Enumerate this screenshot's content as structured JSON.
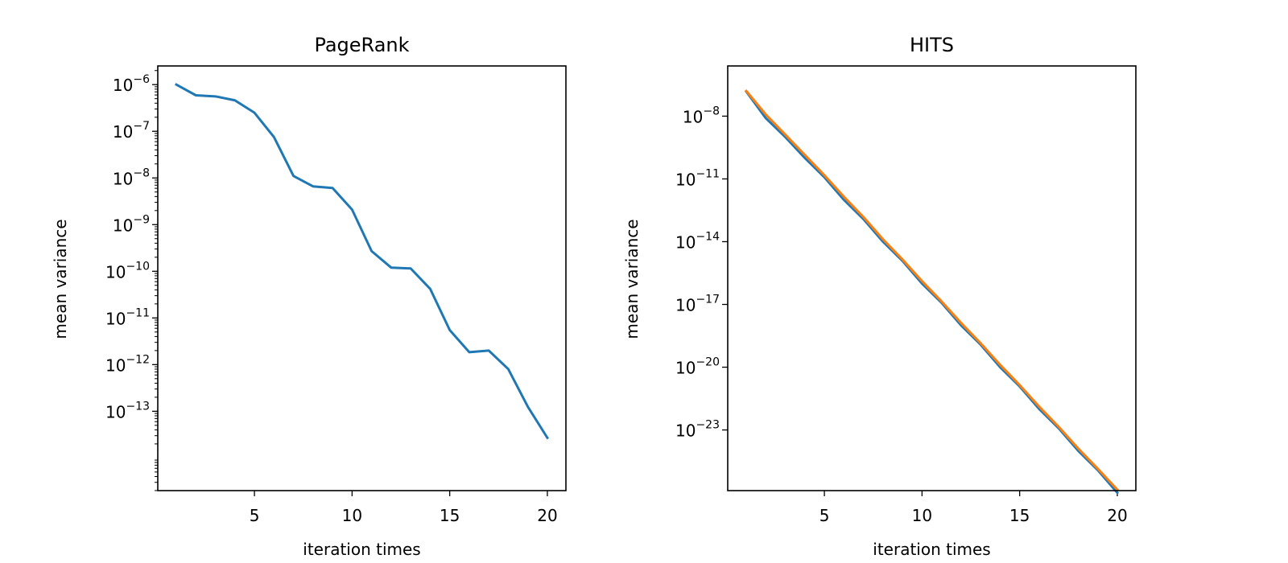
{
  "chart_data": [
    {
      "type": "line",
      "title": "PageRank",
      "xlabel": "iteration times",
      "ylabel": "mean variance",
      "yscale": "log",
      "grid": false,
      "xlim": [
        0.05,
        20.95
      ],
      "ylim_exp": [
        -14.7,
        -5.6
      ],
      "xticks": [
        5,
        10,
        15,
        20
      ],
      "ytick_exps": [
        -13,
        -12,
        -11,
        -10,
        -9,
        -8,
        -7,
        -6
      ],
      "x": [
        1,
        2,
        3,
        4,
        5,
        6,
        7,
        8,
        9,
        10,
        11,
        12,
        13,
        14,
        15,
        16,
        17,
        18,
        19,
        20
      ],
      "series": [
        {
          "color": "#1f77b4",
          "y": [
            1e-06,
            5.9e-07,
            5.6e-07,
            4.6e-07,
            2.5e-07,
            7.5e-08,
            1.1e-08,
            6.6e-09,
            6.1e-09,
            2.1e-09,
            2.7e-10,
            1.2e-10,
            1.15e-10,
            4.2e-11,
            5.5e-12,
            1.85e-12,
            2e-12,
            8e-13,
            1.25e-13,
            2.7e-14
          ]
        }
      ]
    },
    {
      "type": "line",
      "title": "HITS",
      "xlabel": "iteration times",
      "ylabel": "mean variance",
      "yscale": "log",
      "grid": false,
      "xlim": [
        0.05,
        20.95
      ],
      "ylim_exp": [
        -25.9,
        -5.6
      ],
      "xticks": [
        5,
        10,
        15,
        20
      ],
      "ytick_exps": [
        -23,
        -20,
        -17,
        -14,
        -11,
        -8
      ],
      "x": [
        1,
        2,
        3,
        4,
        5,
        6,
        7,
        8,
        9,
        10,
        11,
        12,
        13,
        14,
        15,
        16,
        17,
        18,
        19,
        20
      ],
      "series": [
        {
          "color": "#1f77b4",
          "y": [
            1.5e-07,
            8e-09,
            1e-09,
            1e-10,
            1.2e-11,
            1e-12,
            1.2e-13,
            1e-14,
            1.2e-15,
            1e-16,
            1.2e-17,
            1e-18,
            1.2e-19,
            1e-20,
            1.2e-21,
            1e-22,
            1.2e-23,
            1e-24,
            1.2e-25,
            1e-26
          ]
        },
        {
          "color": "#ff7f0e",
          "y": [
            1.6e-07,
            1.2e-08,
            1.3e-09,
            1.4e-10,
            1.5e-11,
            1.4e-12,
            1.5e-13,
            1.3e-14,
            1.4e-15,
            1.3e-16,
            1.4e-17,
            1.3e-18,
            1.4e-19,
            1.3e-20,
            1.4e-21,
            1.3e-22,
            1.4e-23,
            1.3e-24,
            1.4e-25,
            1.4e-26
          ]
        }
      ]
    }
  ]
}
